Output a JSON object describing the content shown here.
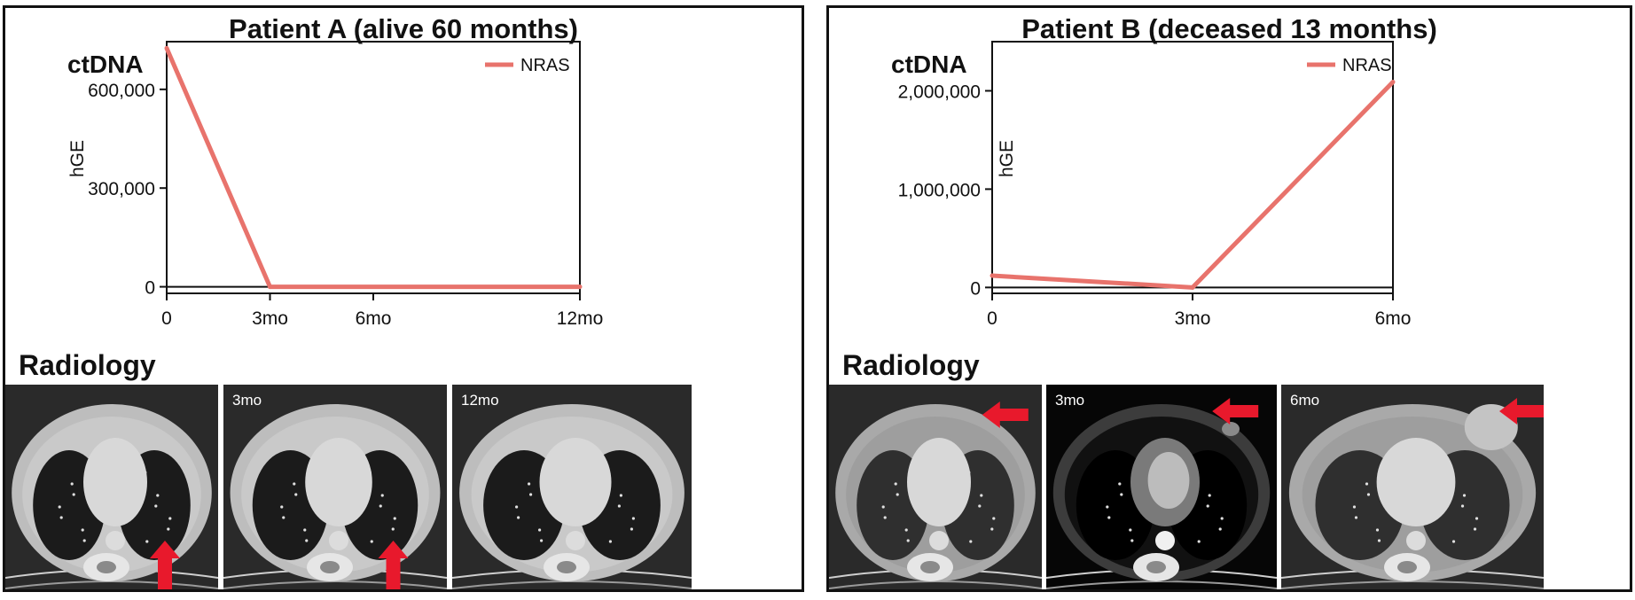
{
  "chart_data": [
    {
      "type": "line",
      "title": "Patient A (alive 60 months)",
      "subtitle": "ctDNA",
      "ylabel": "hGE",
      "xlabel": "",
      "categories": [
        "0",
        "3mo",
        "6mo",
        "12mo"
      ],
      "x": [
        0,
        3,
        6,
        12
      ],
      "yticks": [
        0,
        300000,
        600000
      ],
      "ytick_labels": [
        "0",
        "300,000",
        "600,000"
      ],
      "ylim": [
        -20000,
        745000
      ],
      "grid": false,
      "legend": "top-right",
      "series": [
        {
          "name": "NRAS",
          "color": "#e8736c",
          "x": [
            0,
            3,
            12
          ],
          "values": [
            725000,
            0,
            0
          ]
        }
      ]
    },
    {
      "type": "line",
      "title": "Patient B (deceased 13 months)",
      "subtitle": "ctDNA",
      "ylabel": "hGE",
      "xlabel": "",
      "categories": [
        "0",
        "3mo",
        "6mo"
      ],
      "x": [
        0,
        3,
        6
      ],
      "yticks": [
        0,
        1000000,
        2000000
      ],
      "ytick_labels": [
        "0",
        "1,000,000",
        "2,000,000"
      ],
      "ylim": [
        -60000,
        2500000
      ],
      "grid": false,
      "legend": "top-right",
      "series": [
        {
          "name": "NRAS",
          "color": "#e8736c",
          "x": [
            0,
            3,
            6
          ],
          "values": [
            120000,
            0,
            2090000
          ]
        }
      ]
    }
  ],
  "radiology": {
    "label": "Radiology",
    "patient_a": [
      {
        "label": "",
        "style": "lung",
        "arrow": "up"
      },
      {
        "label": "3mo",
        "style": "lung",
        "arrow": "up"
      },
      {
        "label": "12mo",
        "style": "lung",
        "arrow": "none"
      }
    ],
    "patient_b": [
      {
        "label": "",
        "style": "soft",
        "arrow": "left"
      },
      {
        "label": "3mo",
        "style": "mediastinal",
        "arrow": "left"
      },
      {
        "label": "6mo",
        "style": "soft-mass",
        "arrow": "left"
      }
    ]
  },
  "colors": {
    "series": "#e8736c",
    "arrow": "#e8192c",
    "frame": "#111111"
  }
}
